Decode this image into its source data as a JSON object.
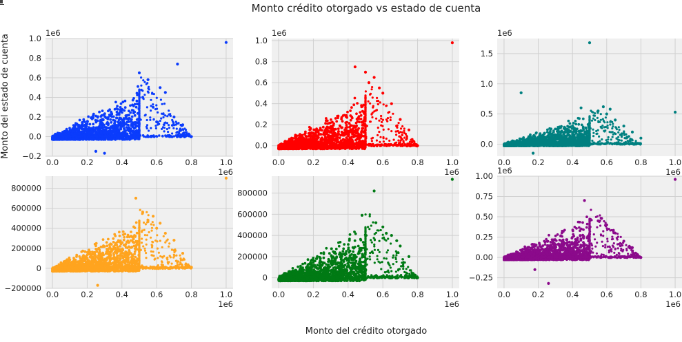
{
  "figure": {
    "title": "Monto crédito otorgado vs estado de cuenta",
    "xlabel": "Monto del crédito otorgado",
    "ylabel": "Monto del estado de cuenta"
  },
  "chart_data": [
    {
      "type": "scatter",
      "color": "#0b3cfc",
      "xlim": [
        -0.04,
        1.04
      ],
      "ylim": [
        -0.2,
        1.0
      ],
      "x_ticks": [
        0.0,
        0.2,
        0.4,
        0.6,
        0.8,
        1.0
      ],
      "x_tick_labels": [
        "0.0",
        "0.2",
        "0.4",
        "0.6",
        "0.8",
        "1.0"
      ],
      "x_offset": "1e6",
      "y_ticks": [
        -0.2,
        0.0,
        0.2,
        0.4,
        0.6,
        0.8,
        1.0
      ],
      "y_tick_labels": [
        "−0.2",
        "0.0",
        "0.2",
        "0.4",
        "0.6",
        "0.8",
        "1.0"
      ],
      "y_offset": "1e6",
      "grid": true,
      "points": [
        [
          1.0,
          0.96
        ],
        [
          0.72,
          0.74
        ],
        [
          0.8,
          0.0
        ],
        [
          0.25,
          -0.15
        ],
        [
          0.3,
          -0.17
        ],
        [
          0.5,
          0.65
        ],
        [
          0.55,
          0.58
        ],
        [
          0.62,
          0.5
        ],
        [
          0.65,
          0.45
        ],
        [
          0.58,
          0.3
        ],
        [
          0.7,
          0.2
        ],
        [
          0.75,
          0.12
        ],
        [
          0.6,
          0.15
        ],
        [
          0.52,
          0.4
        ]
      ]
    },
    {
      "type": "scatter",
      "color": "#ff0000",
      "xlim": [
        -0.04,
        1.04
      ],
      "ylim": [
        -0.1,
        1.02
      ],
      "x_ticks": [
        0.0,
        0.2,
        0.4,
        0.6,
        0.8,
        1.0
      ],
      "x_tick_labels": [
        "0.0",
        "0.2",
        "0.4",
        "0.6",
        "0.8",
        "1.0"
      ],
      "x_offset": "1e6",
      "y_ticks": [
        0.0,
        0.2,
        0.4,
        0.6,
        0.8,
        1.0
      ],
      "y_tick_labels": [
        "0.0",
        "0.2",
        "0.4",
        "0.6",
        "0.8",
        "1.0"
      ],
      "y_offset": "1e6",
      "grid": true,
      "points": [
        [
          1.0,
          0.98
        ],
        [
          0.44,
          0.75
        ],
        [
          0.5,
          0.7
        ],
        [
          0.55,
          0.65
        ],
        [
          0.6,
          0.5
        ],
        [
          0.65,
          0.4
        ],
        [
          0.7,
          0.25
        ],
        [
          0.75,
          0.15
        ],
        [
          0.8,
          0.0
        ],
        [
          0.58,
          0.55
        ],
        [
          0.52,
          0.6
        ]
      ]
    },
    {
      "type": "scatter",
      "color": "#008080",
      "xlim": [
        -0.04,
        1.04
      ],
      "ylim": [
        -0.2,
        1.75
      ],
      "x_ticks": [
        0.0,
        0.2,
        0.4,
        0.6,
        0.8,
        1.0
      ],
      "x_tick_labels": [
        "0.0",
        "0.2",
        "0.4",
        "0.6",
        "0.8",
        "1.0"
      ],
      "x_offset": "1e6",
      "y_ticks": [
        0.0,
        0.5,
        1.0,
        1.5
      ],
      "y_tick_labels": [
        "0.0",
        "0.5",
        "1.0",
        "1.5"
      ],
      "y_offset": "1e6",
      "grid": true,
      "points": [
        [
          0.5,
          1.68
        ],
        [
          0.1,
          0.85
        ],
        [
          1.0,
          0.53
        ],
        [
          0.17,
          -0.15
        ],
        [
          0.45,
          0.6
        ],
        [
          0.55,
          0.55
        ],
        [
          0.6,
          0.5
        ],
        [
          0.65,
          0.4
        ],
        [
          0.7,
          0.3
        ],
        [
          0.8,
          0.1
        ],
        [
          0.75,
          0.2
        ],
        [
          0.58,
          0.62
        ],
        [
          0.62,
          0.58
        ]
      ]
    },
    {
      "type": "scatter",
      "color": "#ffa41f",
      "xlim": [
        -0.04,
        1.04
      ],
      "ylim": [
        -200000,
        920000
      ],
      "x_ticks": [
        0.0,
        0.2,
        0.4,
        0.6,
        0.8,
        1.0
      ],
      "x_tick_labels": [
        "0.0",
        "0.2",
        "0.4",
        "0.6",
        "0.8",
        "1.0"
      ],
      "x_offset": "1e6",
      "y_ticks": [
        -200000,
        0,
        200000,
        400000,
        600000,
        800000
      ],
      "y_tick_labels": [
        "−200000",
        "0",
        "200000",
        "400000",
        "600000",
        "800000"
      ],
      "y_offset": "",
      "grid": true,
      "points": [
        [
          1.0,
          900000
        ],
        [
          0.52,
          560000
        ],
        [
          0.55,
          480000
        ],
        [
          0.58,
          520000
        ],
        [
          0.6,
          400000
        ],
        [
          0.65,
          350000
        ],
        [
          0.7,
          280000
        ],
        [
          0.75,
          150000
        ],
        [
          0.8,
          10000
        ],
        [
          0.48,
          700000
        ],
        [
          0.26,
          -170000
        ],
        [
          0.62,
          450000
        ]
      ]
    },
    {
      "type": "scatter",
      "color": "#007a14",
      "xlim": [
        -0.04,
        1.04
      ],
      "ylim": [
        -100000,
        960000
      ],
      "x_ticks": [
        0.0,
        0.2,
        0.4,
        0.6,
        0.8,
        1.0
      ],
      "x_tick_labels": [
        "0.0",
        "0.2",
        "0.4",
        "0.6",
        "0.8",
        "1.0"
      ],
      "x_offset": "1e6",
      "y_ticks": [
        0,
        200000,
        400000,
        600000,
        800000
      ],
      "y_tick_labels": [
        "0",
        "200000",
        "400000",
        "600000",
        "800000"
      ],
      "y_offset": "",
      "grid": true,
      "points": [
        [
          1.0,
          930000
        ],
        [
          0.55,
          820000
        ],
        [
          0.48,
          590000
        ],
        [
          0.56,
          520000
        ],
        [
          0.6,
          480000
        ],
        [
          0.65,
          400000
        ],
        [
          0.7,
          300000
        ],
        [
          0.75,
          200000
        ],
        [
          0.8,
          0
        ],
        [
          0.62,
          420000
        ],
        [
          0.68,
          350000
        ]
      ]
    },
    {
      "type": "scatter",
      "color": "#8b0a8b",
      "xlim": [
        -0.04,
        1.04
      ],
      "ylim": [
        -0.38,
        1.0
      ],
      "x_ticks": [
        0.0,
        0.2,
        0.4,
        0.6,
        0.8,
        1.0
      ],
      "x_tick_labels": [
        "0.0",
        "0.2",
        "0.4",
        "0.6",
        "0.8",
        "1.0"
      ],
      "x_offset": "1e6",
      "y_ticks": [
        -0.25,
        0.0,
        0.25,
        0.5,
        0.75,
        1.0
      ],
      "y_tick_labels": [
        "−0.25",
        "0.00",
        "0.25",
        "0.50",
        "0.75",
        "1.00"
      ],
      "y_offset": "1e6",
      "grid": true,
      "points": [
        [
          1.0,
          0.96
        ],
        [
          0.47,
          0.7
        ],
        [
          0.26,
          -0.32
        ],
        [
          0.55,
          0.45
        ],
        [
          0.6,
          0.4
        ],
        [
          0.65,
          0.3
        ],
        [
          0.7,
          0.2
        ],
        [
          0.75,
          0.12
        ],
        [
          0.8,
          0.0
        ],
        [
          0.57,
          0.48
        ],
        [
          0.18,
          -0.15
        ]
      ]
    }
  ]
}
